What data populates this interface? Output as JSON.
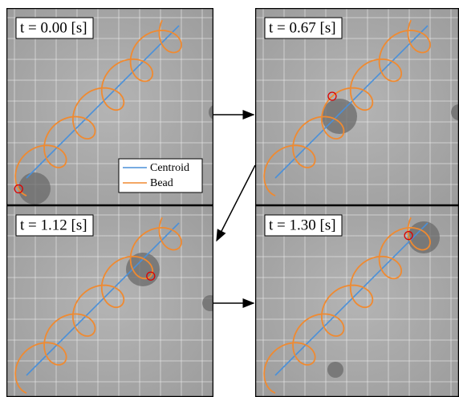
{
  "panels": [
    {
      "label": "t = 0.00 [s]"
    },
    {
      "label": "t = 0.67 [s]"
    },
    {
      "label": "t = 1.12 [s]"
    },
    {
      "label": "t = 1.30 [s]"
    }
  ],
  "legend": {
    "items": [
      "Centroid",
      "Bead"
    ]
  }
}
